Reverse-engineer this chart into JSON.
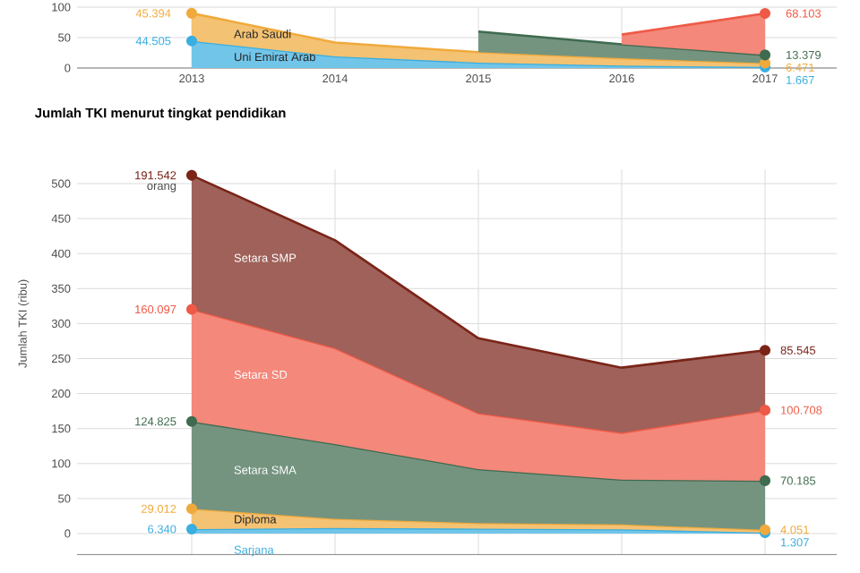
{
  "chart_data": [
    {
      "type": "area",
      "stacked": true,
      "categories": [
        "2013",
        "2014",
        "2015",
        "2016",
        "2017"
      ],
      "ylim": [
        0,
        100
      ],
      "yticks": [
        0,
        50,
        100
      ],
      "grid": true,
      "series": [
        {
          "name": "Uni Emirat Arab",
          "color": "#3aaee0",
          "values": [
            44.505,
            19,
            9,
            4,
            1.667
          ],
          "value_labels": [
            "44.505",
            null,
            null,
            null,
            "1.667"
          ]
        },
        {
          "name": "Arab Saudi",
          "color": "#f0aa3c",
          "values": [
            45.394,
            23,
            17,
            12,
            6.471
          ],
          "value_labels": [
            "45.394",
            null,
            null,
            null,
            "6.471"
          ]
        },
        {
          "color": "#3f6b4f",
          "values": [
            null,
            null,
            34,
            23,
            13.379
          ],
          "value_labels": [
            null,
            null,
            null,
            null,
            "13.379"
          ]
        },
        {
          "color": "#ee5a47",
          "values": [
            null,
            null,
            null,
            16,
            68.103
          ],
          "value_labels": [
            null,
            null,
            null,
            null,
            "68.103"
          ]
        }
      ]
    },
    {
      "type": "area",
      "stacked": true,
      "title": "Jumlah TKI menurut tingkat pendidikan",
      "ylabel": "Jumlah TKI (ribu)",
      "categories": [
        "2013",
        "2014",
        "2015",
        "2016",
        "2017"
      ],
      "ylim": [
        -30,
        520
      ],
      "yticks": [
        0,
        50,
        100,
        150,
        200,
        250,
        300,
        350,
        400,
        450,
        500
      ],
      "grid": true,
      "tick_labels": "y",
      "annotations": [
        "orang"
      ],
      "series": [
        {
          "name": "Sarjana",
          "color": "#3aaee0",
          "values": [
            6.34,
            8,
            7,
            6,
            1.307
          ],
          "value_labels": [
            "6.340",
            null,
            null,
            null,
            "1.307"
          ]
        },
        {
          "name": "Diploma",
          "color": "#f0aa3c",
          "values": [
            29.012,
            13,
            8,
            7,
            4.051
          ],
          "value_labels": [
            "29.012",
            null,
            null,
            null,
            "4.051"
          ]
        },
        {
          "name": "Setara SMA",
          "color": "#3f6b4f",
          "values": [
            124.825,
            107,
            77,
            64,
            70.185
          ],
          "value_labels": [
            "124.825",
            null,
            null,
            null,
            "70.185"
          ]
        },
        {
          "name": "Setara SD",
          "color": "#ee5a47",
          "values": [
            160.097,
            137,
            80,
            67,
            100.708
          ],
          "value_labels": [
            "160.097",
            null,
            null,
            null,
            "100.708"
          ]
        },
        {
          "name": "Setara SMP",
          "color": "#7a2418",
          "values": [
            191.542,
            154,
            107,
            93,
            85.545
          ],
          "value_labels": [
            "191.542",
            null,
            null,
            null,
            "85.545"
          ]
        }
      ]
    }
  ]
}
